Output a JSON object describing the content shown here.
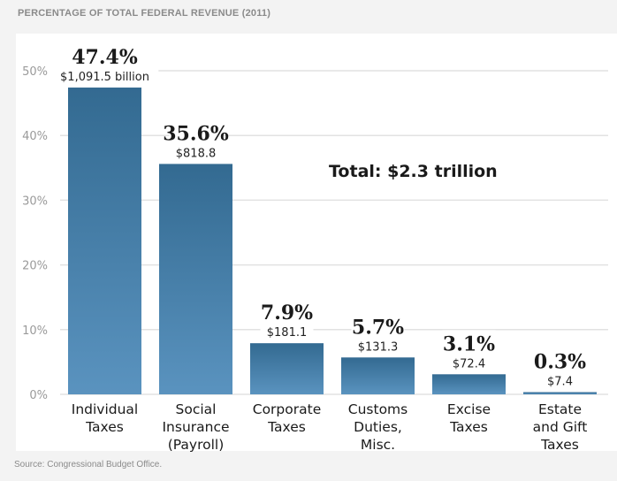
{
  "header": {
    "title": "PERCENTAGE OF TOTAL FEDERAL REVENUE (2011)"
  },
  "footer": {
    "source": "Source: Congressional Budget Office."
  },
  "colors": {
    "bar_top": "#336a91",
    "bar_bottom": "#5a93bf",
    "grid": "#e2e2e2"
  },
  "chart_data": {
    "type": "bar",
    "title": "PERCENTAGE OF TOTAL FEDERAL REVENUE (2011)",
    "xlabel": "",
    "ylabel": "",
    "ylim": [
      0,
      50
    ],
    "yticks": [
      0,
      10,
      20,
      30,
      40,
      50
    ],
    "ytick_labels": [
      "0%",
      "10%",
      "20%",
      "30%",
      "40%",
      "50%"
    ],
    "grid": true,
    "annotation": "Total: $2.3 trillion",
    "categories": [
      [
        "Individual",
        "Taxes"
      ],
      [
        "Social",
        "Insurance",
        "(Payroll)"
      ],
      [
        "Corporate",
        "Taxes"
      ],
      [
        "Customs",
        "Duties,",
        "Misc."
      ],
      [
        "Excise",
        "Taxes"
      ],
      [
        "Estate",
        "and Gift",
        "Taxes"
      ]
    ],
    "values": [
      47.4,
      35.6,
      7.9,
      5.7,
      3.1,
      0.3
    ],
    "value_labels": [
      "47.4%",
      "35.6%",
      "7.9%",
      "5.7%",
      "3.1%",
      "0.3%"
    ],
    "amount_labels": [
      "$1,091.5 billion",
      "$818.8",
      "$181.1",
      "$131.3",
      "$72.4",
      "$7.4"
    ],
    "amounts_billion": [
      1091.5,
      818.8,
      181.1,
      131.3,
      72.4,
      7.4
    ]
  }
}
